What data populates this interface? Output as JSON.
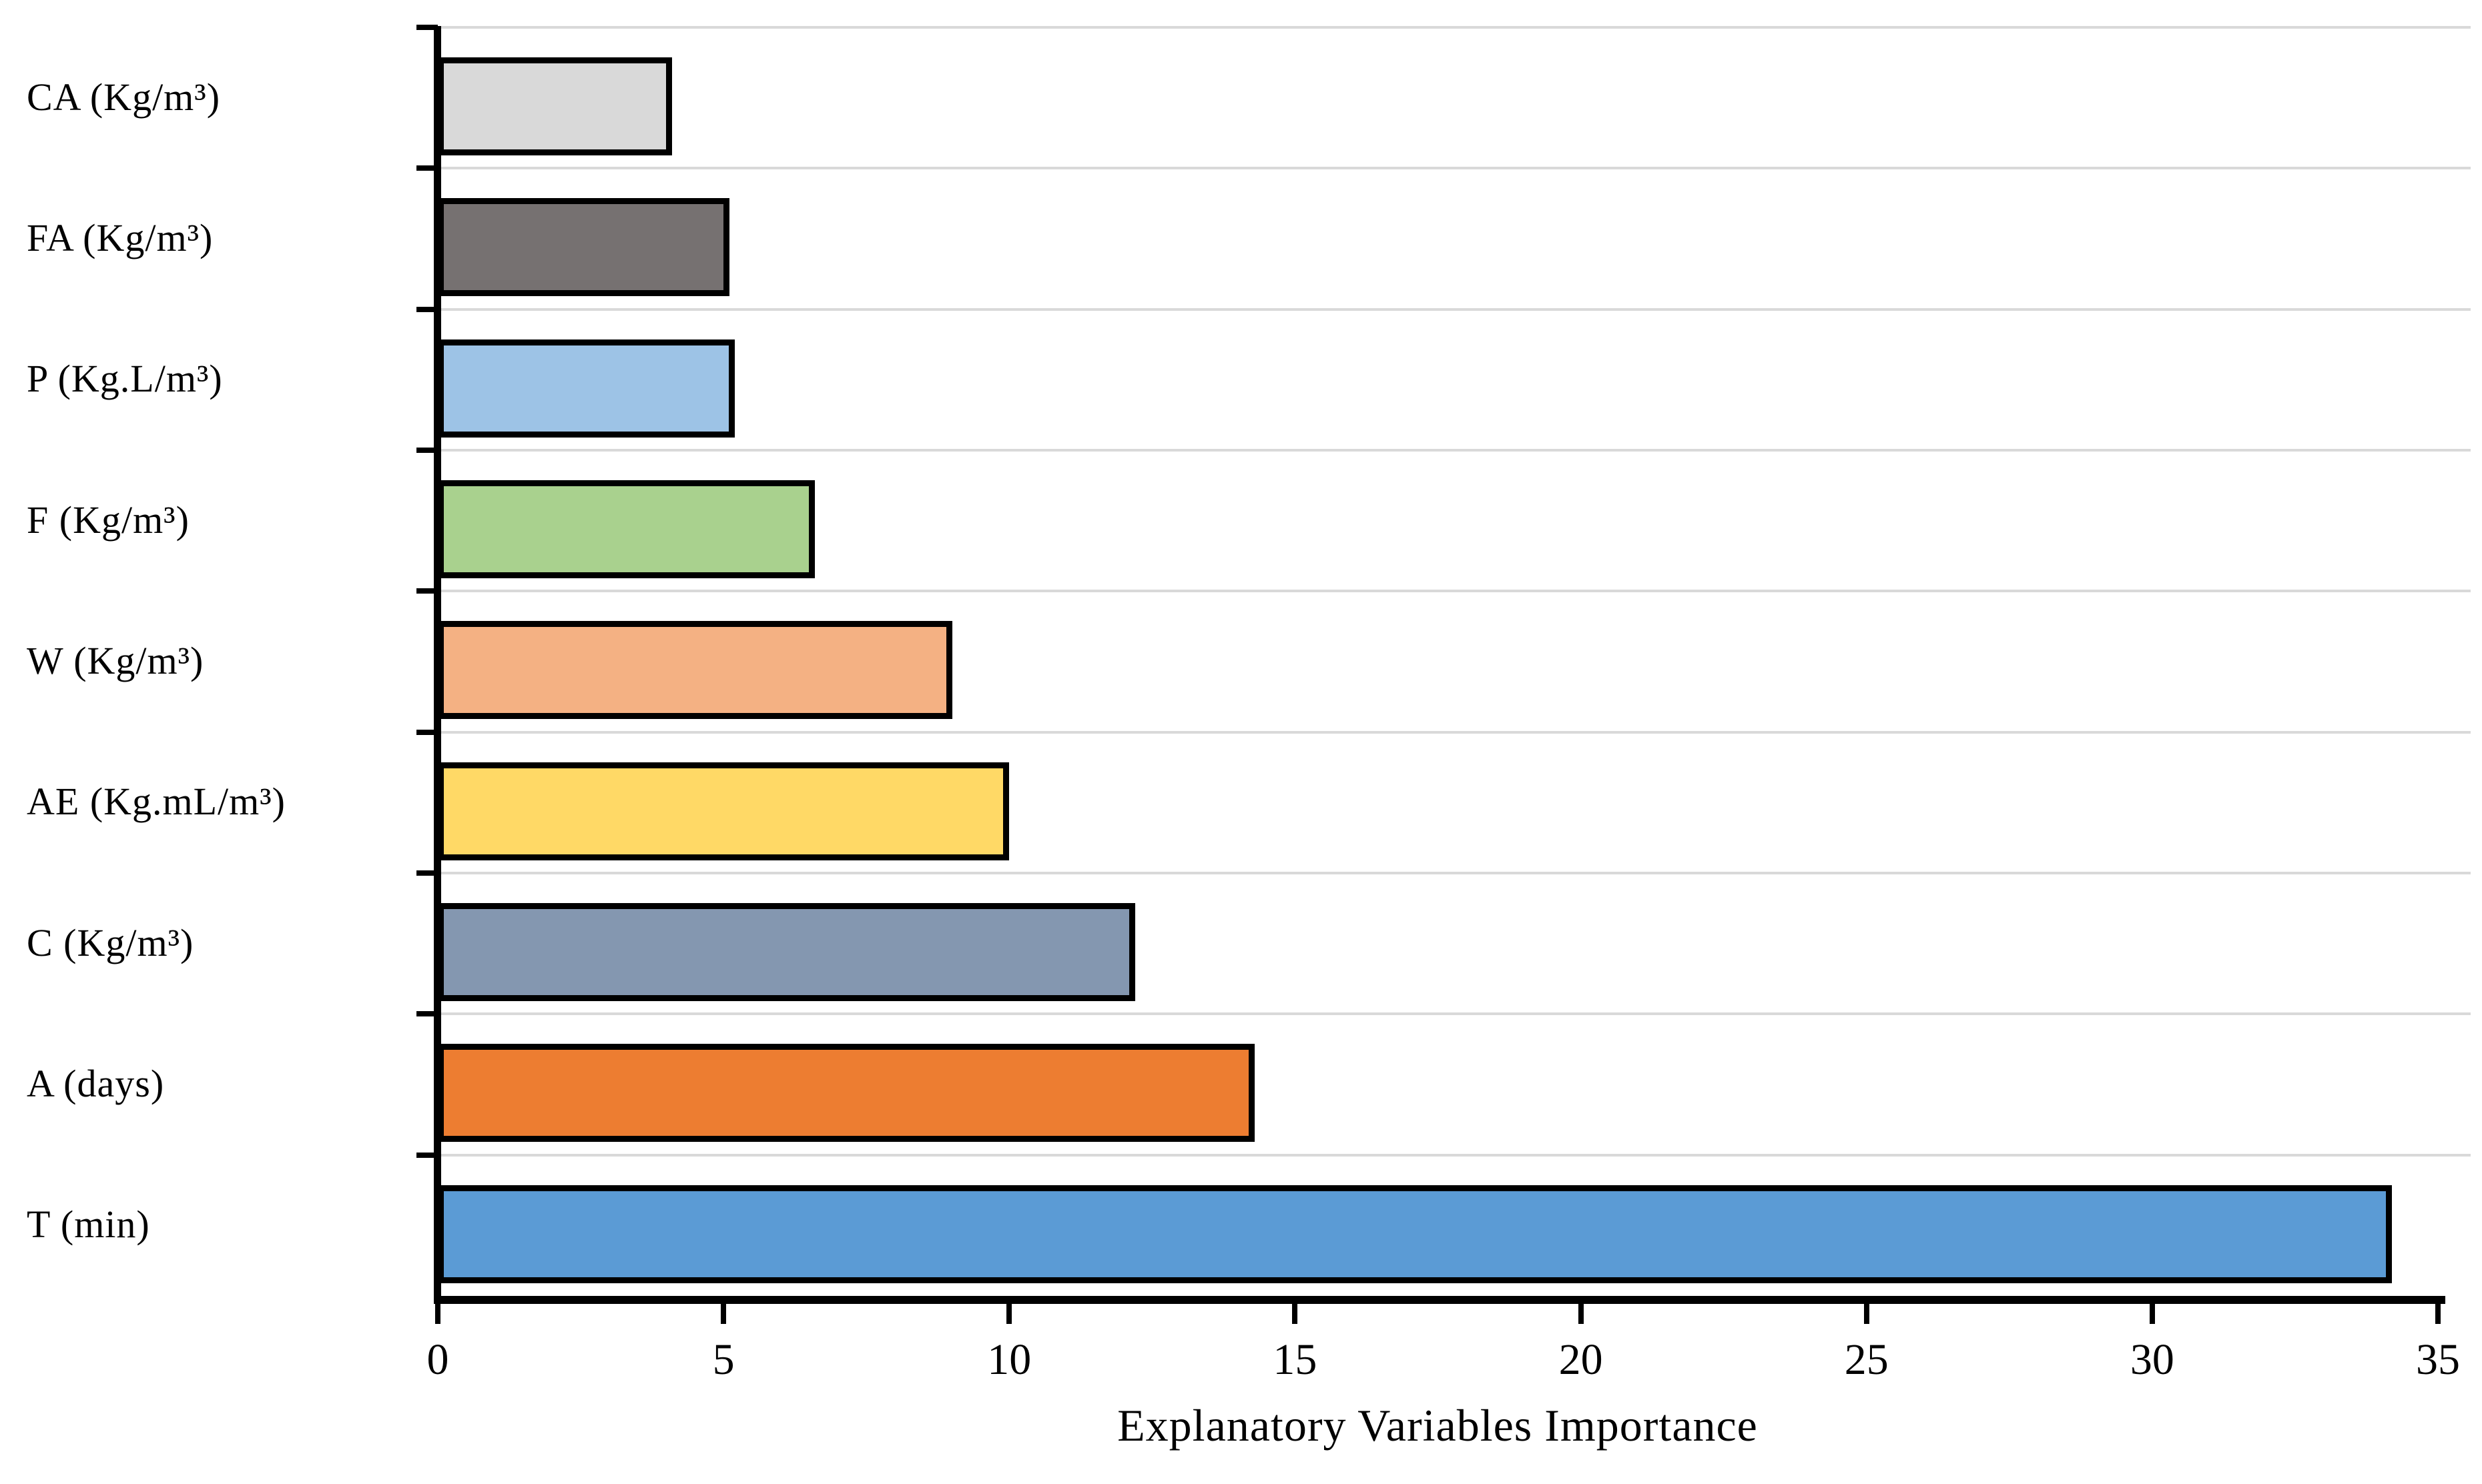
{
  "chart_data": {
    "type": "bar",
    "orientation": "horizontal",
    "title": "",
    "xlabel": "Explanatory Variables Importance",
    "ylabel": "",
    "categories": [
      "CA (Kg/m³)",
      "FA (Kg/m³)",
      "P (Kg.L/m³)",
      "F (Kg/m³)",
      "W (Kg/m³)",
      "AE (Kg.mL/m³)",
      "C (Kg/m³)",
      "A (days)",
      "T (min)"
    ],
    "values": [
      4.1,
      5.1,
      5.2,
      6.6,
      9.0,
      10.0,
      12.2,
      14.3,
      34.2
    ],
    "bar_colors": [
      "#d9d9d9",
      "#767171",
      "#9dc3e6",
      "#a9d18e",
      "#f4b183",
      "#ffd966",
      "#8497b0",
      "#ed7d31",
      "#5b9bd5"
    ],
    "bar_border_color": "#000000",
    "xlim": [
      0,
      35
    ],
    "x_ticks": [
      0,
      5,
      10,
      15,
      20,
      25,
      30,
      35
    ],
    "grid": "horizontal lines at category boundaries",
    "gridline_color": "#d9d9d9",
    "axis_color": "#000000",
    "text_color": "#000000",
    "background_color": "#ffffff",
    "legend": "none"
  }
}
